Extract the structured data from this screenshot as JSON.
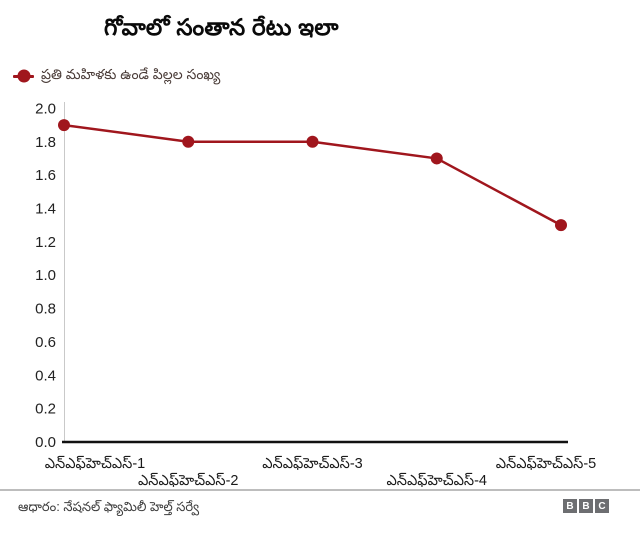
{
  "chart_data": {
    "type": "line",
    "title": "గోవాలో సంతాన రేటు ఇలా",
    "categories": [
      "ఎన్ఎఫ్‌హెచ్ఎస్-1",
      "ఎన్ఎఫ్‌హెచ్ఎస్-2",
      "ఎన్ఎఫ్‌హెచ్ఎస్-3",
      "ఎన్ఎఫ్‌హెచ్ఎస్-4",
      "ఎన్ఎఫ్‌హెచ్ఎస్-5"
    ],
    "series": [
      {
        "name": "ప్రతి మహిళకు ఉండే పిల్లల సంఖ్య",
        "values": [
          1.9,
          1.8,
          1.8,
          1.7,
          1.3
        ]
      }
    ],
    "ylim": [
      0.0,
      2.0
    ],
    "yticks": [
      "0.0",
      "0.2",
      "0.4",
      "0.6",
      "0.8",
      "1.0",
      "1.2",
      "1.4",
      "1.6",
      "1.8",
      "2.0"
    ],
    "xlabel": "",
    "ylabel": "",
    "grid": false,
    "legend_position": "top-left",
    "x_labels_staggered": true
  },
  "footer": {
    "source": "ఆధారం: నేషనల్ ఫ్యామిలీ హెల్త్ సర్వే",
    "logo": [
      "B",
      "B",
      "C"
    ]
  },
  "colors": {
    "series": "#a0161d",
    "axis": "#111111",
    "spine": "#c9c9c9",
    "tick_label": "#222222",
    "x_label": "#1a1a1a",
    "title": "#0a0a0a",
    "legend_text": "#4a3c38",
    "divider": "#bdbdbd",
    "footer_text": "#3d3d3d",
    "logo_bg": "#6d6e71"
  }
}
